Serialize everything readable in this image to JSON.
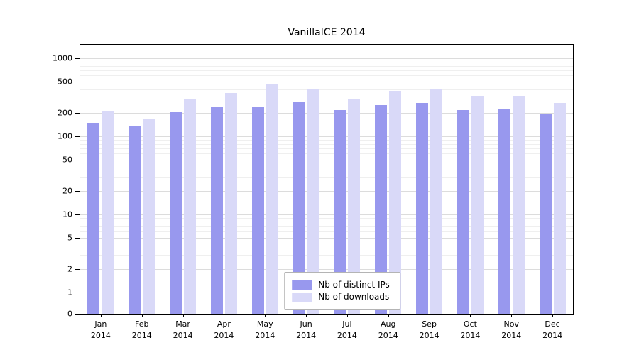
{
  "chart_data": {
    "type": "bar",
    "title": "VanillaICE 2014",
    "categories": [
      "Jan",
      "Feb",
      "Mar",
      "Apr",
      "May",
      "Jun",
      "Jul",
      "Aug",
      "Sep",
      "Oct",
      "Nov",
      "Dec"
    ],
    "x_year": "2014",
    "scale": "log",
    "grid": true,
    "ylim": [
      0,
      1000
    ],
    "yticks": [
      0,
      1,
      2,
      5,
      10,
      20,
      50,
      100,
      200,
      500,
      1000
    ],
    "legend_position": "bottom-center",
    "series": [
      {
        "name": "Nb of distinct IPs",
        "color": "#9898ee",
        "values": [
          150,
          135,
          205,
          240,
          240,
          280,
          215,
          250,
          265,
          215,
          225,
          195
        ]
      },
      {
        "name": "Nb of downloads",
        "color": "#d9d9f8",
        "values": [
          210,
          170,
          305,
          360,
          460,
          400,
          295,
          385,
          410,
          330,
          330,
          265
        ]
      }
    ]
  }
}
